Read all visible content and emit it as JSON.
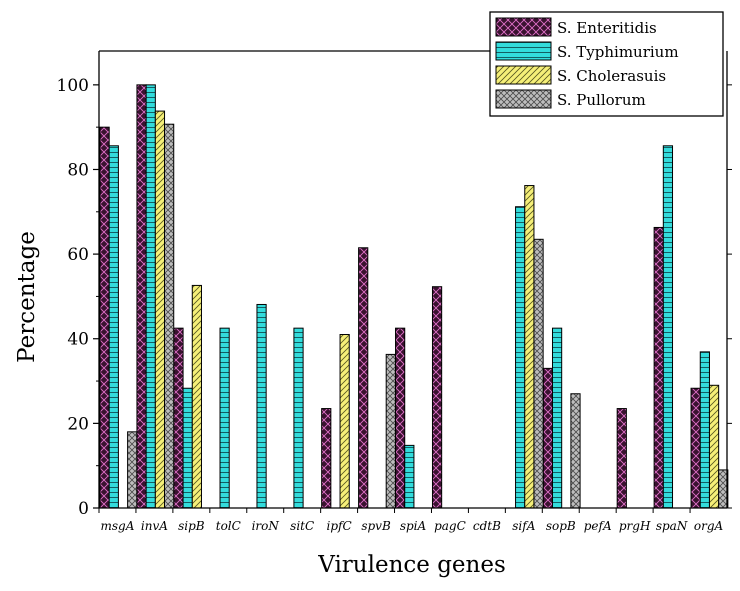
{
  "chart_data": {
    "type": "bar",
    "title": "",
    "xlabel": "Virulence genes",
    "ylabel": "Percentage",
    "ylim": [
      0,
      108
    ],
    "yticks": [
      0,
      20,
      40,
      60,
      80,
      100
    ],
    "ytick_labels": [
      "0",
      "20",
      "40",
      "60",
      "80",
      "100"
    ],
    "legend_position": "top-right",
    "categories": [
      "msgA",
      "invA",
      "sipB",
      "tolC",
      "iroN",
      "sitC",
      "ipfC",
      "spvB",
      "spiA",
      "pagC",
      "cdtB",
      "sifA",
      "sopB",
      "pefA",
      "prgH",
      "spaN",
      "orgA"
    ],
    "series": [
      {
        "name": "S. Enteritidis",
        "color": "#3a1230",
        "pattern": "crosshatch-magenta",
        "values": [
          90,
          100,
          42.5,
          0,
          0,
          0,
          23.5,
          61.5,
          42.5,
          52.3,
          0,
          0,
          33,
          0,
          23.5,
          66.3,
          28.3
        ]
      },
      {
        "name": "S. Typhimurium",
        "color": "#29d6d6",
        "pattern": "horizontal-lines",
        "values": [
          85.6,
          100,
          28.3,
          42.5,
          48.1,
          42.5,
          0,
          0,
          14.8,
          0,
          0,
          71.2,
          42.5,
          0,
          0,
          85.6,
          36.9
        ]
      },
      {
        "name": "S. Cholerasuis",
        "color": "#f5ef78",
        "pattern": "diagonal-lines",
        "values": [
          0,
          93.8,
          52.6,
          0,
          0,
          0,
          41,
          0,
          0,
          0,
          0,
          76.2,
          0,
          0,
          0,
          0,
          29
        ]
      },
      {
        "name": "S. Pullorum",
        "color": "#b4b4b4",
        "pattern": "crosshatch-gray",
        "values": [
          18,
          90.7,
          0,
          0,
          0,
          0,
          0,
          36.3,
          0,
          0,
          0,
          63.5,
          27,
          0,
          0,
          0,
          9
        ]
      }
    ]
  }
}
